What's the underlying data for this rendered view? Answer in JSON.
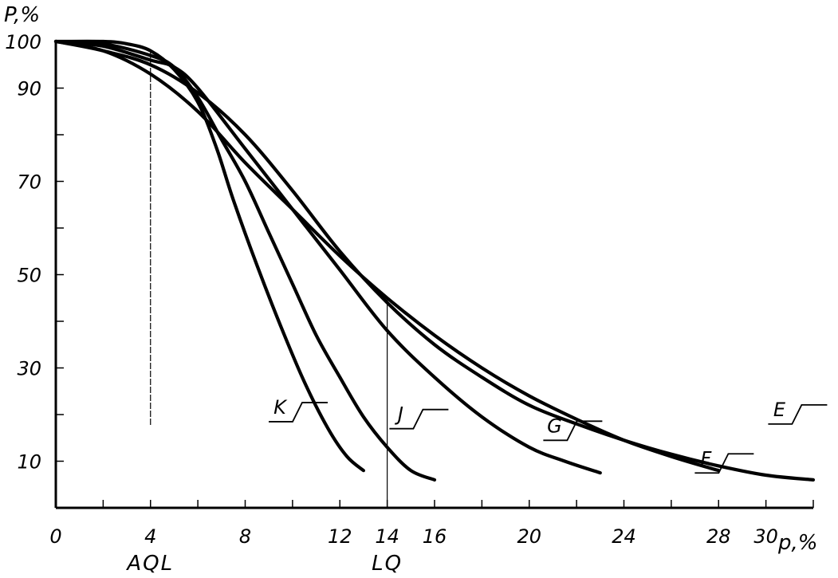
{
  "chart_data": {
    "type": "line",
    "ylabel": "P,%",
    "xlabel": "p,%",
    "xlim": [
      0,
      32
    ],
    "ylim": [
      0,
      100
    ],
    "x_ticks": [
      0,
      2,
      4,
      6,
      8,
      10,
      12,
      14,
      16,
      18,
      20,
      22,
      24,
      26,
      28,
      30,
      32
    ],
    "x_tick_labels": [
      {
        "x": 0,
        "text": "0"
      },
      {
        "x": 4,
        "text": "4"
      },
      {
        "x": 8,
        "text": "8"
      },
      {
        "x": 12,
        "text": "12"
      },
      {
        "x": 14,
        "text": "14"
      },
      {
        "x": 16,
        "text": "16"
      },
      {
        "x": 20,
        "text": "20"
      },
      {
        "x": 24,
        "text": "24"
      },
      {
        "x": 28,
        "text": "28"
      },
      {
        "x": 30,
        "text": "30"
      }
    ],
    "y_ticks": [
      10,
      20,
      30,
      40,
      50,
      60,
      70,
      80,
      90,
      100
    ],
    "y_tick_labels": [
      {
        "y": 10,
        "text": "10"
      },
      {
        "y": 30,
        "text": "30"
      },
      {
        "y": 50,
        "text": "50"
      },
      {
        "y": 70,
        "text": "70"
      },
      {
        "y": 90,
        "text": "90"
      },
      {
        "y": 100,
        "text": "100"
      }
    ],
    "reference_lines": [
      {
        "x": 4,
        "label": "AQL",
        "style": "dashed"
      },
      {
        "x": 14,
        "label": "LQ",
        "style": "solid"
      }
    ],
    "series": [
      {
        "name": "K",
        "points": [
          [
            0,
            100
          ],
          [
            2,
            100
          ],
          [
            3,
            99.5
          ],
          [
            4,
            98
          ],
          [
            5,
            94
          ],
          [
            6,
            87
          ],
          [
            6.8,
            77
          ],
          [
            7.5,
            66
          ],
          [
            8.5,
            52
          ],
          [
            9.5,
            39
          ],
          [
            10.5,
            27
          ],
          [
            11.5,
            17
          ],
          [
            12.3,
            11
          ],
          [
            13,
            8
          ]
        ],
        "label_at": [
          9.6,
          19.5
        ]
      },
      {
        "name": "J",
        "points": [
          [
            0,
            100
          ],
          [
            2,
            99.5
          ],
          [
            4,
            97
          ],
          [
            5,
            94.5
          ],
          [
            6,
            88
          ],
          [
            7,
            79
          ],
          [
            8,
            70
          ],
          [
            9,
            59
          ],
          [
            10,
            48
          ],
          [
            11,
            37
          ],
          [
            12,
            28
          ],
          [
            13,
            19.5
          ],
          [
            14,
            13
          ],
          [
            15,
            8
          ],
          [
            16,
            6
          ]
        ],
        "label_at": [
          14.7,
          18
        ]
      },
      {
        "name": "G",
        "points": [
          [
            0,
            100
          ],
          [
            2,
            99
          ],
          [
            4,
            96
          ],
          [
            5,
            94.5
          ],
          [
            6,
            90
          ],
          [
            8,
            77
          ],
          [
            10,
            64
          ],
          [
            12,
            51
          ],
          [
            14,
            38
          ],
          [
            16,
            28
          ],
          [
            18,
            19.5
          ],
          [
            20,
            13
          ],
          [
            21.5,
            10
          ],
          [
            23,
            7.5
          ]
        ],
        "label_at": [
          21.2,
          15.5
        ]
      },
      {
        "name": "F",
        "points": [
          [
            0,
            100
          ],
          [
            2,
            98
          ],
          [
            4,
            93
          ],
          [
            6,
            85
          ],
          [
            8,
            74
          ],
          [
            10,
            64
          ],
          [
            12,
            54
          ],
          [
            14,
            45
          ],
          [
            16,
            37
          ],
          [
            18,
            30
          ],
          [
            20,
            24
          ],
          [
            22,
            19
          ],
          [
            24,
            14.5
          ],
          [
            26,
            11
          ],
          [
            28,
            8
          ]
        ],
        "label_at": [
          27.6,
          8.5
        ]
      },
      {
        "name": "E",
        "points": [
          [
            0,
            100
          ],
          [
            2,
            98
          ],
          [
            4,
            95
          ],
          [
            6,
            89
          ],
          [
            8,
            80
          ],
          [
            10,
            68
          ],
          [
            12,
            55
          ],
          [
            14,
            44
          ],
          [
            16,
            35
          ],
          [
            18,
            28
          ],
          [
            20,
            22
          ],
          [
            22,
            18
          ],
          [
            24,
            14.5
          ],
          [
            26,
            11.5
          ],
          [
            28,
            9
          ],
          [
            30,
            7
          ],
          [
            32,
            6
          ]
        ],
        "label_at": [
          30.7,
          19
        ]
      }
    ]
  }
}
